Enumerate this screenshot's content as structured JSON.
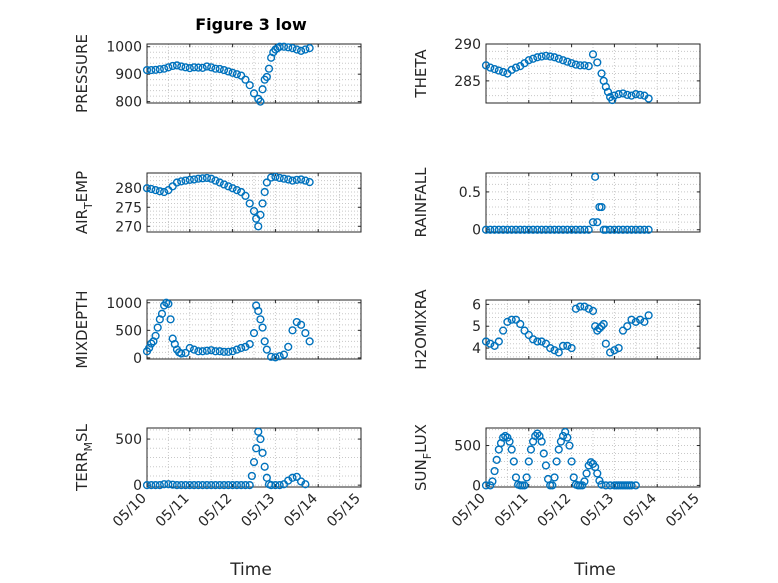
{
  "figure": {
    "title": "Figure 3 low",
    "xlabel": "Time",
    "x_ticks": [
      "05/10",
      "05/11",
      "05/12",
      "05/13",
      "05/14",
      "05/15"
    ]
  },
  "chart_data": [
    {
      "type": "scatter",
      "ylabel": "PRESSURE",
      "ylim": [
        795,
        1010
      ],
      "yticks": [
        800,
        900,
        1000
      ],
      "ytick_labels": [
        "800",
        "900",
        "1000"
      ],
      "xlim": [
        "05/10",
        "05/15"
      ],
      "grid": true,
      "title": "Figure 3 low",
      "x": [
        0,
        0.1,
        0.2,
        0.3,
        0.4,
        0.5,
        0.6,
        0.7,
        0.8,
        0.9,
        1.0,
        1.1,
        1.2,
        1.3,
        1.4,
        1.5,
        1.6,
        1.7,
        1.8,
        1.9,
        2.0,
        2.1,
        2.2,
        2.3,
        2.4,
        2.5,
        2.6,
        2.65,
        2.7,
        2.75,
        2.8,
        2.85,
        2.9,
        2.95,
        3.0,
        3.05,
        3.1,
        3.2,
        3.3,
        3.4,
        3.5,
        3.6,
        3.7,
        3.8
      ],
      "y": [
        915,
        915,
        916,
        918,
        920,
        925,
        930,
        932,
        928,
        925,
        922,
        925,
        924,
        923,
        928,
        925,
        920,
        919,
        915,
        910,
        905,
        900,
        895,
        880,
        860,
        830,
        810,
        800,
        845,
        880,
        890,
        920,
        960,
        980,
        990,
        995,
        1000,
        1000,
        998,
        995,
        990,
        985,
        990,
        995
      ]
    },
    {
      "type": "scatter",
      "ylabel": "THETA",
      "ylim": [
        282,
        290
      ],
      "yticks": [
        285,
        290
      ],
      "ytick_labels": [
        "285",
        "290"
      ],
      "xlim": [
        "05/10",
        "05/15"
      ],
      "grid": true,
      "x": [
        0,
        0.1,
        0.2,
        0.3,
        0.4,
        0.5,
        0.6,
        0.7,
        0.8,
        0.9,
        1.0,
        1.1,
        1.2,
        1.3,
        1.4,
        1.5,
        1.6,
        1.7,
        1.8,
        1.9,
        2.0,
        2.1,
        2.2,
        2.3,
        2.4,
        2.5,
        2.6,
        2.7,
        2.75,
        2.8,
        2.85,
        2.9,
        2.95,
        3.0,
        3.1,
        3.2,
        3.3,
        3.4,
        3.5,
        3.6,
        3.7,
        3.8
      ],
      "y": [
        287.1,
        286.8,
        286.6,
        286.4,
        286.2,
        286.0,
        286.5,
        286.8,
        287.0,
        287.4,
        287.8,
        288.0,
        288.2,
        288.3,
        288.4,
        288.3,
        288.2,
        288.0,
        287.8,
        287.6,
        287.4,
        287.2,
        287.1,
        287.1,
        287.0,
        288.6,
        287.5,
        286.0,
        285.0,
        284.2,
        283.5,
        282.8,
        282.4,
        283.0,
        283.2,
        283.3,
        283.1,
        283.0,
        283.2,
        283.1,
        283.0,
        282.6
      ]
    },
    {
      "type": "scatter",
      "ylabel": "AIR_TEMP",
      "ylim": [
        268.5,
        284
      ],
      "yticks": [
        270,
        275,
        280
      ],
      "ytick_labels": [
        "270",
        "275",
        "280"
      ],
      "xlim": [
        "05/10",
        "05/15"
      ],
      "grid": true,
      "x": [
        0,
        0.1,
        0.2,
        0.3,
        0.4,
        0.5,
        0.6,
        0.7,
        0.8,
        0.9,
        1.0,
        1.1,
        1.2,
        1.3,
        1.4,
        1.5,
        1.6,
        1.7,
        1.8,
        1.9,
        2.0,
        2.1,
        2.2,
        2.3,
        2.4,
        2.5,
        2.55,
        2.6,
        2.65,
        2.7,
        2.75,
        2.8,
        2.9,
        3.0,
        3.1,
        3.2,
        3.3,
        3.4,
        3.5,
        3.6,
        3.7,
        3.8
      ],
      "y": [
        280,
        279.8,
        279.5,
        279.2,
        279.0,
        279.5,
        280.5,
        281.5,
        281.8,
        282.0,
        282.2,
        282.3,
        282.5,
        282.6,
        282.7,
        282.5,
        282.0,
        281.5,
        281.0,
        280.5,
        280.0,
        279.5,
        279.0,
        278.0,
        276.0,
        274.0,
        272.0,
        270.0,
        273.0,
        276.0,
        279.0,
        281.5,
        282.8,
        283.0,
        282.7,
        282.5,
        282.3,
        282.0,
        282.2,
        282.3,
        282.0,
        281.6
      ]
    },
    {
      "type": "scatter",
      "ylabel": "RAINFALL",
      "ylim": [
        -0.03,
        0.75
      ],
      "yticks": [
        0,
        0.5
      ],
      "ytick_labels": [
        "0",
        "0.5"
      ],
      "xlim": [
        "05/10",
        "05/15"
      ],
      "grid": true,
      "x": [
        0,
        0.1,
        0.2,
        0.3,
        0.4,
        0.5,
        0.6,
        0.7,
        0.8,
        0.9,
        1.0,
        1.1,
        1.2,
        1.3,
        1.4,
        1.5,
        1.6,
        1.7,
        1.8,
        1.9,
        2.0,
        2.1,
        2.2,
        2.3,
        2.4,
        2.5,
        2.55,
        2.6,
        2.65,
        2.7,
        2.75,
        2.8,
        2.9,
        3.0,
        3.1,
        3.2,
        3.3,
        3.4,
        3.5,
        3.6,
        3.7,
        3.8
      ],
      "y": [
        0,
        0,
        0,
        0,
        0,
        0,
        0,
        0,
        0,
        0,
        0,
        0,
        0,
        0,
        0,
        0,
        0,
        0,
        0,
        0,
        0,
        0,
        0,
        0,
        0,
        0.1,
        0.7,
        0.1,
        0.3,
        0.3,
        0,
        0,
        0,
        0,
        0,
        0,
        0,
        0,
        0,
        0,
        0,
        0
      ]
    },
    {
      "type": "scatter",
      "ylabel": "MIXDEPTH",
      "ylim": [
        -20,
        1050
      ],
      "yticks": [
        0,
        500,
        1000
      ],
      "ytick_labels": [
        "0",
        "500",
        "1000"
      ],
      "xlim": [
        "05/10",
        "05/15"
      ],
      "grid": true,
      "x": [
        0,
        0.05,
        0.1,
        0.15,
        0.2,
        0.25,
        0.3,
        0.35,
        0.4,
        0.45,
        0.5,
        0.55,
        0.6,
        0.65,
        0.7,
        0.75,
        0.8,
        0.9,
        1.0,
        1.1,
        1.2,
        1.3,
        1.4,
        1.5,
        1.6,
        1.7,
        1.8,
        1.9,
        2.0,
        2.1,
        2.2,
        2.3,
        2.4,
        2.5,
        2.55,
        2.6,
        2.65,
        2.7,
        2.75,
        2.8,
        2.9,
        3.0,
        3.1,
        3.2,
        3.3,
        3.4,
        3.5,
        3.6,
        3.7,
        3.8
      ],
      "y": [
        120,
        180,
        260,
        300,
        400,
        550,
        700,
        800,
        950,
        1000,
        980,
        700,
        350,
        250,
        150,
        100,
        80,
        90,
        180,
        150,
        120,
        120,
        130,
        140,
        120,
        120,
        110,
        110,
        120,
        150,
        180,
        200,
        250,
        450,
        950,
        850,
        700,
        550,
        300,
        150,
        20,
        10,
        30,
        60,
        200,
        500,
        650,
        600,
        450,
        300
      ]
    },
    {
      "type": "scatter",
      "ylabel": "H2OMIXRA",
      "ylim": [
        3.5,
        6.2
      ],
      "yticks": [
        4,
        5,
        6
      ],
      "ytick_labels": [
        "4",
        "5",
        "6"
      ],
      "xlim": [
        "05/10",
        "05/15"
      ],
      "grid": true,
      "x": [
        0,
        0.1,
        0.2,
        0.3,
        0.4,
        0.5,
        0.6,
        0.7,
        0.8,
        0.9,
        1.0,
        1.1,
        1.2,
        1.3,
        1.4,
        1.5,
        1.6,
        1.7,
        1.8,
        1.9,
        2.0,
        2.1,
        2.2,
        2.3,
        2.4,
        2.5,
        2.55,
        2.6,
        2.65,
        2.7,
        2.75,
        2.8,
        2.9,
        3.0,
        3.1,
        3.2,
        3.3,
        3.4,
        3.5,
        3.6,
        3.7,
        3.8
      ],
      "y": [
        4.3,
        4.2,
        4.1,
        4.3,
        4.8,
        5.2,
        5.3,
        5.3,
        5.1,
        4.8,
        4.6,
        4.4,
        4.3,
        4.3,
        4.2,
        4.0,
        3.9,
        3.8,
        4.1,
        4.1,
        4.0,
        5.8,
        5.9,
        5.9,
        5.8,
        5.7,
        5.0,
        4.8,
        4.9,
        5.0,
        5.1,
        4.2,
        3.8,
        3.9,
        4.0,
        4.8,
        5.0,
        5.3,
        5.2,
        5.3,
        5.2,
        5.5
      ]
    },
    {
      "type": "scatter",
      "ylabel": "TERR_MSL",
      "ylim": [
        -20,
        620
      ],
      "yticks": [
        0,
        500
      ],
      "ytick_labels": [
        "0",
        "500"
      ],
      "xlim": [
        "05/10",
        "05/15"
      ],
      "grid": true,
      "x": [
        0,
        0.1,
        0.2,
        0.3,
        0.4,
        0.5,
        0.6,
        0.7,
        0.8,
        0.9,
        1.0,
        1.1,
        1.2,
        1.3,
        1.4,
        1.5,
        1.6,
        1.7,
        1.8,
        1.9,
        2.0,
        2.1,
        2.2,
        2.3,
        2.4,
        2.45,
        2.5,
        2.55,
        2.6,
        2.65,
        2.7,
        2.75,
        2.8,
        2.85,
        2.9,
        3.0,
        3.1,
        3.2,
        3.3,
        3.4,
        3.5,
        3.6,
        3.7
      ],
      "y": [
        0,
        0,
        0,
        0,
        10,
        10,
        5,
        0,
        0,
        0,
        0,
        0,
        0,
        0,
        0,
        0,
        0,
        0,
        0,
        0,
        0,
        0,
        0,
        0,
        0,
        100,
        250,
        400,
        580,
        500,
        350,
        200,
        80,
        10,
        0,
        0,
        0,
        10,
        50,
        80,
        90,
        40,
        10
      ]
    },
    {
      "type": "scatter",
      "ylabel": "SUN_FLUX",
      "ylim": [
        -20,
        720
      ],
      "yticks": [
        0,
        500
      ],
      "ytick_labels": [
        "0",
        "500"
      ],
      "xlim": [
        "05/10",
        "05/15"
      ],
      "grid": true,
      "x": [
        0,
        0.1,
        0.15,
        0.2,
        0.25,
        0.3,
        0.35,
        0.4,
        0.45,
        0.5,
        0.55,
        0.6,
        0.65,
        0.7,
        0.75,
        0.8,
        0.85,
        0.9,
        0.95,
        1.0,
        1.05,
        1.1,
        1.15,
        1.2,
        1.25,
        1.3,
        1.35,
        1.4,
        1.45,
        1.5,
        1.55,
        1.6,
        1.65,
        1.7,
        1.75,
        1.8,
        1.85,
        1.9,
        1.95,
        2.0,
        2.05,
        2.1,
        2.15,
        2.2,
        2.25,
        2.3,
        2.35,
        2.4,
        2.45,
        2.5,
        2.55,
        2.6,
        2.65,
        2.7,
        2.8,
        2.9,
        3.0,
        3.05,
        3.1,
        3.15,
        3.2,
        3.25,
        3.3,
        3.35,
        3.4,
        3.5
      ],
      "y": [
        0,
        0,
        50,
        180,
        320,
        450,
        530,
        600,
        620,
        600,
        550,
        450,
        300,
        100,
        10,
        0,
        0,
        0,
        100,
        300,
        450,
        550,
        620,
        650,
        620,
        550,
        400,
        250,
        80,
        0,
        0,
        100,
        300,
        450,
        550,
        620,
        670,
        600,
        500,
        300,
        100,
        10,
        0,
        0,
        0,
        50,
        150,
        250,
        290,
        270,
        230,
        150,
        60,
        10,
        0,
        0,
        0,
        0,
        0,
        0,
        0,
        0,
        0,
        0,
        0,
        0
      ]
    }
  ]
}
